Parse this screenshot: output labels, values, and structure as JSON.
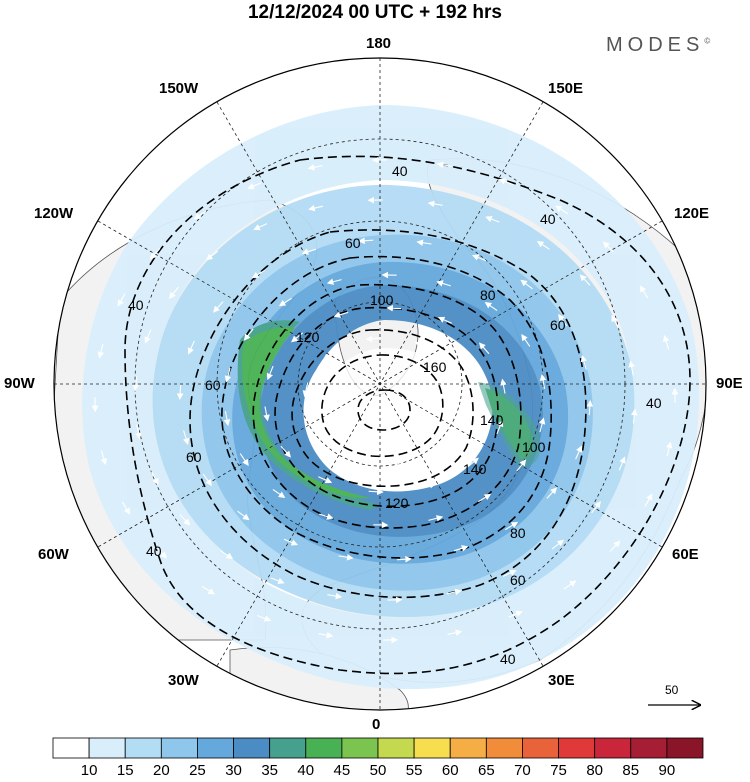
{
  "title": "12/12/2024  00 UTC  + 192 hrs",
  "brand": "MODES",
  "brand_mark": "©",
  "longitude_labels": {
    "n180": "180",
    "w150": "150W",
    "e150": "150E",
    "w120": "120W",
    "e120": "120E",
    "w90": "90W",
    "e90": "90E",
    "w60": "60W",
    "e60": "60E",
    "w30": "30W",
    "e30": "30E",
    "s0": "0"
  },
  "contour_labels": [
    "40",
    "40",
    "40",
    "40",
    "40",
    "40",
    "60",
    "60",
    "60",
    "60",
    "60",
    "80",
    "80",
    "100",
    "100",
    "120",
    "120",
    "140",
    "140",
    "160"
  ],
  "reference_vector": "50",
  "colorbar": {
    "ticks": [
      "10",
      "15",
      "20",
      "25",
      "30",
      "35",
      "40",
      "45",
      "50",
      "55",
      "60",
      "65",
      "70",
      "75",
      "80",
      "85",
      "90"
    ],
    "colors": [
      "#ffffff",
      "#d8eefb",
      "#b3dcf5",
      "#8ec6ec",
      "#65a8dc",
      "#4b8cc4",
      "#45a08e",
      "#47b153",
      "#7cc450",
      "#c4d94f",
      "#f6de4f",
      "#f5ad45",
      "#f08c3a",
      "#e8623a",
      "#e0393a",
      "#c9263b",
      "#a61e34",
      "#8a1528"
    ]
  },
  "colors": {
    "land": "#f2f2f2",
    "coast": "#555555",
    "vector": "#ffffff"
  }
}
